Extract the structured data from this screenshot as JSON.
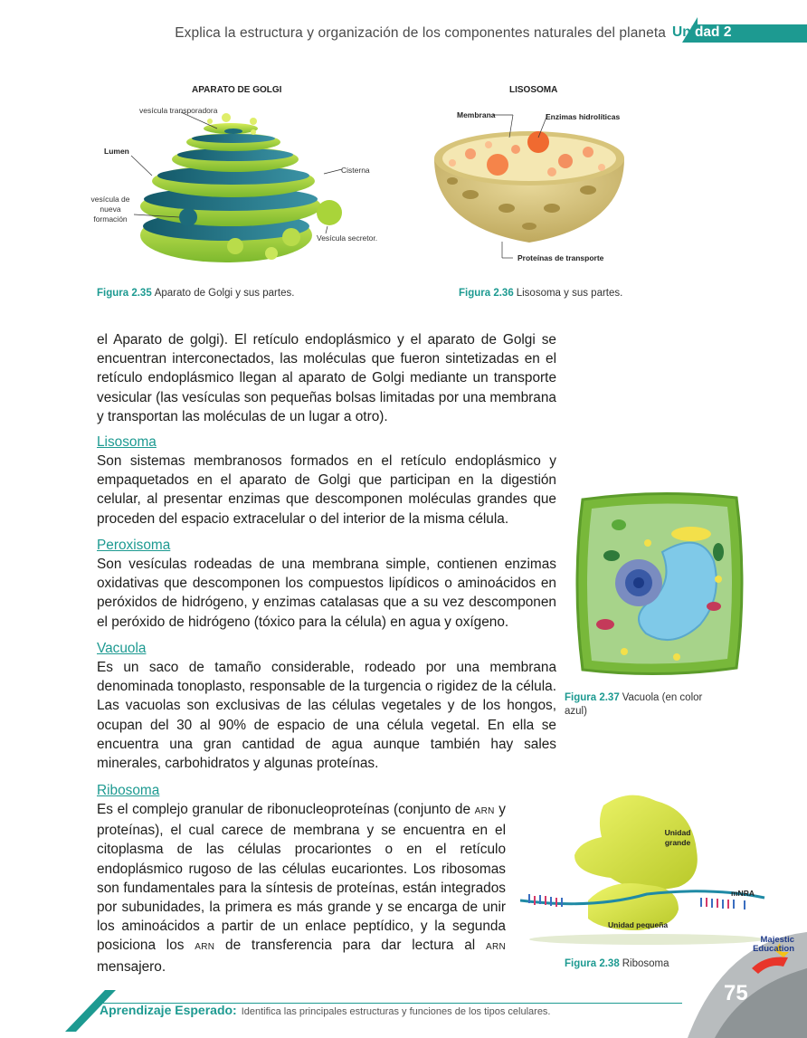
{
  "header": {
    "running_title": "Explica la estructura y organización de los componentes naturales del planeta",
    "unit_prefix": "Uni",
    "unit_rest": "dad 2"
  },
  "golgi": {
    "title": "APARATO DE GOLGI",
    "labels": {
      "transport_vesicle": "vesícula transporadora",
      "lumen": "Lumen",
      "cisterna": "Cisterna",
      "new_vesicle_1": "vesícula de",
      "new_vesicle_2": "nueva",
      "new_vesicle_3": "formación",
      "secretory_vesicle": "Vesícula secretor."
    },
    "caption_fig": "Figura 2.35",
    "caption_text": "Aparato de Golgi  y sus partes."
  },
  "lysosome": {
    "title": "LISOSOMA",
    "labels": {
      "membrane": "Membrana",
      "enzymes": "Enzimas  hidrolíticas",
      "proteins": "Proteínas de transporte"
    },
    "caption_fig": "Figura 2.36",
    "caption_text": "Lisosoma y sus partes."
  },
  "body": {
    "intro": "el Aparato de golgi). El retículo endoplásmico y el aparato de Golgi se encuentran interconectados, las moléculas que fueron sintetizadas en el retículo endoplásmico llegan al aparato de Golgi mediante un transporte vesicular  (las vesículas son pequeñas bolsas limitadas por una membrana y transportan las moléculas de un lugar a otro).",
    "sections": [
      {
        "heading": "Lisosoma",
        "text": "Son sistemas membranosos formados en el retículo endoplásmico y empaquetados en el aparato de Golgi que participan en la digestión celular, al presentar enzimas que descomponen moléculas grandes que proceden del espacio extracelular o del interior de la misma célula."
      },
      {
        "heading": "Peroxisoma",
        "text": "Son vesículas rodeadas de una membrana simple, contienen enzimas oxidativas que descomponen los compuestos lipídicos o aminoácidos en peróxidos de hidrógeno, y enzimas catalasas que a su vez descomponen el peróxido de hidrógeno (tóxico para la célula) en agua y oxígeno."
      },
      {
        "heading": "Vacuola",
        "text": "Es un saco de tamaño considerable, rodeado por una membrana denominada tonoplasto, responsable de la turgencia o rigidez de la célula. Las vacuolas son exclusivas de las células vegetales y de los hongos, ocupan del 30 al 90% de espacio de una célula vegetal. En ella se encuentra una gran cantidad de agua aunque también hay sales minerales, carbohidratos y algunas proteínas."
      },
      {
        "heading": "Ribosoma",
        "text_1": "Es el complejo granular de ribonucleoproteínas (conjunto de ",
        "sc_1": "ARN",
        "text_2": " y proteínas), el cual carece de membrana y se encuentra en el citoplasma de las células procariontes o en el retículo endoplásmico rugoso de las células eucariontes. Los ribosomas son fundamentales para la síntesis de proteínas, están integrados por subunidades, la primera es más grande y se encarga de unir los aminoácidos a partir de un enlace peptídico, y la segunda posiciona los ",
        "sc_2": "ARN",
        "text_3": " de transferencia para dar lectura al ",
        "sc_3": "ARN",
        "text_4": " mensajero."
      }
    ]
  },
  "vacuole_fig": {
    "caption_fig": "Figura 2.37",
    "caption_text": "Vacuola (en color azul)"
  },
  "ribosome_fig": {
    "label_large_1": "Unidad",
    "label_large_2": "grande",
    "label_mrna": "mNRA",
    "label_small": "Unidad pequeña",
    "caption_fig": "Figura 2.38",
    "caption_text": "Ribosoma"
  },
  "logo": {
    "line1": "Majestic",
    "line2": "Education"
  },
  "footer": {
    "label": "Aprendizaje Esperado:",
    "text": "Identifica las principales estructuras y funciones de los tipos celulares.",
    "page_number": "75"
  },
  "colors": {
    "accent": "#1d9a91"
  }
}
